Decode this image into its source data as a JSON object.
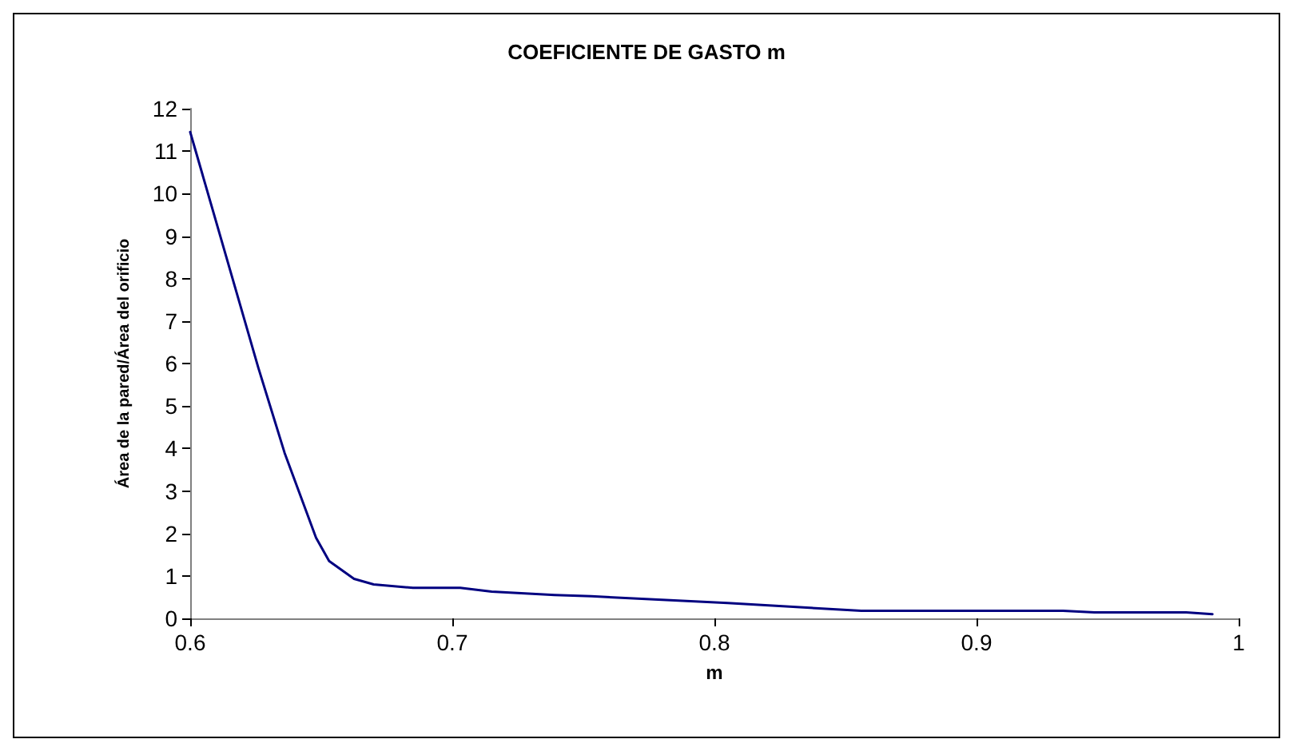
{
  "chart_data": {
    "type": "line",
    "title": "COEFICIENTE DE GASTO m",
    "xlabel": "m",
    "ylabel": "Área de la pared/Área del orificio",
    "x": [
      0.6,
      0.626,
      0.636,
      0.648,
      0.653,
      0.6625,
      0.67,
      0.685,
      0.703,
      0.715,
      0.739,
      0.753,
      0.805,
      0.856,
      0.933,
      0.945,
      0.98,
      0.99
    ],
    "series": [
      {
        "color": "#000080",
        "values": [
          11.45,
          5.9,
          3.9,
          1.9,
          1.35,
          0.93,
          0.8,
          0.72,
          0.72,
          0.63,
          0.55,
          0.52,
          0.36,
          0.18,
          0.18,
          0.14,
          0.14,
          0.1
        ]
      }
    ],
    "xlim": [
      0.6,
      1
    ],
    "xticks": [
      0.6,
      0.7,
      0.8,
      0.9,
      1
    ],
    "ylim": [
      0,
      12
    ],
    "yticks": [
      0,
      1,
      2,
      3,
      4,
      5,
      6,
      7,
      8,
      9,
      10,
      11,
      12
    ],
    "grid": false,
    "marker": "none",
    "line_style": "solid"
  }
}
